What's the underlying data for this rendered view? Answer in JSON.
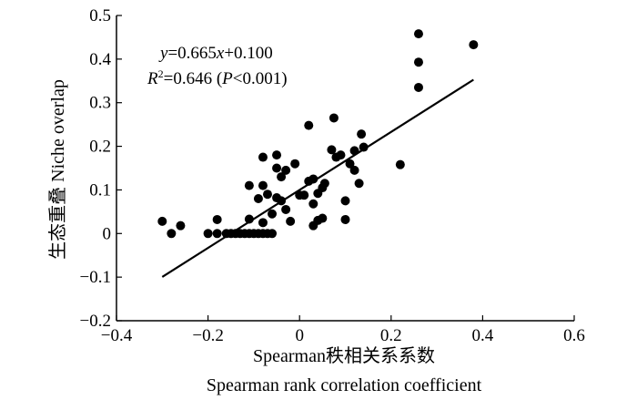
{
  "chart_data": {
    "type": "scatter",
    "title": "",
    "xlabel": "Spearman秩相关系系数",
    "xlabel_en": "Spearman rank correlation coefficient",
    "ylabel": "生态重叠 Niche overlap",
    "xlim": [
      -0.4,
      0.6
    ],
    "ylim": [
      -0.2,
      0.5
    ],
    "x_ticks": [
      "−0.4",
      "−0.2",
      "0",
      "0.2",
      "0.4",
      "0.6"
    ],
    "y_ticks": [
      "−0.2",
      "−0.1",
      "0",
      "0.1",
      "0.2",
      "0.3",
      "0.4",
      "0.5"
    ],
    "x_tick_values": [
      -0.4,
      -0.2,
      0,
      0.2,
      0.4,
      0.6
    ],
    "y_tick_values": [
      -0.2,
      -0.1,
      0,
      0.1,
      0.2,
      0.3,
      0.4,
      0.5
    ],
    "grid": false,
    "equation": {
      "lhs": "y",
      "eq": "=0.665",
      "var": "x",
      "rest": "+0.100"
    },
    "r2": {
      "label": "R",
      "sup": "2",
      "val": "=0.646 (",
      "p": "P",
      "rest": "<0.001)"
    },
    "fit_line": {
      "slope": 0.665,
      "intercept": 0.1,
      "x_range": [
        -0.3,
        0.38
      ]
    },
    "points": [
      {
        "x": -0.3,
        "y": 0.028
      },
      {
        "x": -0.28,
        "y": 0.0
      },
      {
        "x": -0.26,
        "y": 0.018
      },
      {
        "x": -0.2,
        "y": 0.0
      },
      {
        "x": -0.18,
        "y": 0.0
      },
      {
        "x": -0.18,
        "y": 0.032
      },
      {
        "x": -0.16,
        "y": 0.0
      },
      {
        "x": -0.15,
        "y": 0.0
      },
      {
        "x": -0.14,
        "y": 0.0
      },
      {
        "x": -0.13,
        "y": 0.0
      },
      {
        "x": -0.12,
        "y": 0.0
      },
      {
        "x": -0.11,
        "y": 0.0
      },
      {
        "x": -0.1,
        "y": 0.0
      },
      {
        "x": -0.09,
        "y": 0.0
      },
      {
        "x": -0.08,
        "y": 0.0
      },
      {
        "x": -0.07,
        "y": 0.0
      },
      {
        "x": -0.06,
        "y": 0.0
      },
      {
        "x": -0.11,
        "y": 0.033
      },
      {
        "x": -0.08,
        "y": 0.025
      },
      {
        "x": -0.11,
        "y": 0.11
      },
      {
        "x": -0.09,
        "y": 0.08
      },
      {
        "x": -0.08,
        "y": 0.11
      },
      {
        "x": -0.08,
        "y": 0.175
      },
      {
        "x": -0.07,
        "y": 0.09
      },
      {
        "x": -0.06,
        "y": 0.045
      },
      {
        "x": -0.05,
        "y": 0.18
      },
      {
        "x": -0.05,
        "y": 0.15
      },
      {
        "x": -0.05,
        "y": 0.082
      },
      {
        "x": -0.04,
        "y": 0.13
      },
      {
        "x": -0.04,
        "y": 0.075
      },
      {
        "x": -0.03,
        "y": 0.145
      },
      {
        "x": -0.03,
        "y": 0.055
      },
      {
        "x": -0.02,
        "y": 0.028
      },
      {
        "x": -0.01,
        "y": 0.16
      },
      {
        "x": 0.0,
        "y": 0.088
      },
      {
        "x": 0.01,
        "y": 0.088
      },
      {
        "x": 0.02,
        "y": 0.12
      },
      {
        "x": 0.02,
        "y": 0.248
      },
      {
        "x": 0.03,
        "y": 0.068
      },
      {
        "x": 0.03,
        "y": 0.125
      },
      {
        "x": 0.03,
        "y": 0.018
      },
      {
        "x": 0.04,
        "y": 0.03
      },
      {
        "x": 0.04,
        "y": 0.092
      },
      {
        "x": 0.05,
        "y": 0.035
      },
      {
        "x": 0.05,
        "y": 0.105
      },
      {
        "x": 0.055,
        "y": 0.115
      },
      {
        "x": 0.07,
        "y": 0.192
      },
      {
        "x": 0.075,
        "y": 0.265
      },
      {
        "x": 0.08,
        "y": 0.175
      },
      {
        "x": 0.09,
        "y": 0.18
      },
      {
        "x": 0.1,
        "y": 0.075
      },
      {
        "x": 0.1,
        "y": 0.032
      },
      {
        "x": 0.11,
        "y": 0.16
      },
      {
        "x": 0.12,
        "y": 0.145
      },
      {
        "x": 0.12,
        "y": 0.19
      },
      {
        "x": 0.13,
        "y": 0.115
      },
      {
        "x": 0.135,
        "y": 0.228
      },
      {
        "x": 0.14,
        "y": 0.198
      },
      {
        "x": 0.22,
        "y": 0.158
      },
      {
        "x": 0.26,
        "y": 0.335
      },
      {
        "x": 0.26,
        "y": 0.393
      },
      {
        "x": 0.26,
        "y": 0.458
      },
      {
        "x": 0.38,
        "y": 0.433
      }
    ]
  }
}
